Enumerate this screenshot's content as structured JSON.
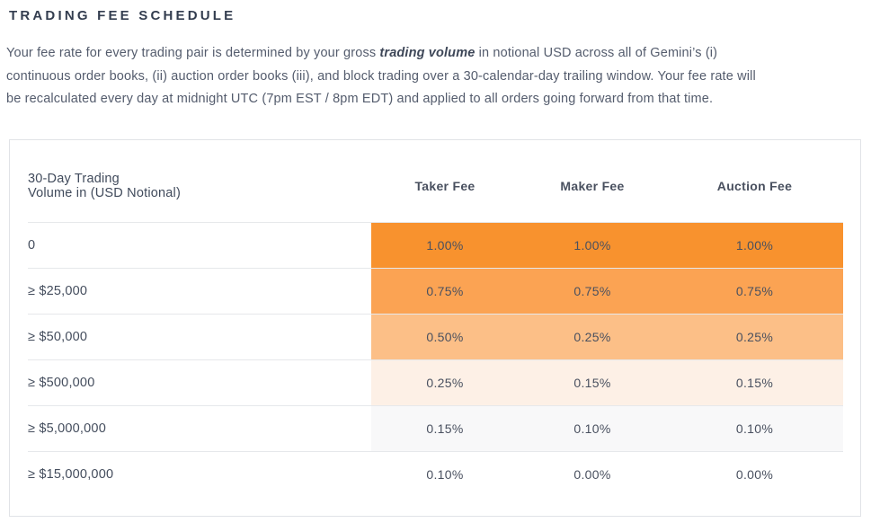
{
  "page": {
    "title": "TRADING FEE SCHEDULE",
    "intro": {
      "line1_before": "Your fee rate for every trading pair is determined by your gross ",
      "line1_emphasis": "trading volume",
      "line1_after": " in notional USD across all of Gemini’s (i)",
      "line2": "continuous order books, (ii) auction order books (iii), and block trading over a 30-calendar-day trailing window. Your fee rate will",
      "line3": "be recalculated every day at midnight UTC (7pm EST / 8pm EDT) and applied to all orders going forward from that time."
    }
  },
  "table": {
    "headers": {
      "volume_line1": "30-Day Trading",
      "volume_line2": "Volume in (USD Notional)",
      "taker": "Taker Fee",
      "maker": "Maker Fee",
      "auction": "Auction Fee"
    },
    "rows": [
      {
        "volume": "0",
        "taker": "1.00%",
        "maker": "1.00%",
        "auction": "1.00%",
        "color": "#F8922E"
      },
      {
        "volume": "≥ $25,000",
        "taker": "0.75%",
        "maker": "0.75%",
        "auction": "0.75%",
        "color": "#FBA353"
      },
      {
        "volume": "≥ $50,000",
        "taker": "0.50%",
        "maker": "0.25%",
        "auction": "0.25%",
        "color": "#FCBF87"
      },
      {
        "volume": "≥ $500,000",
        "taker": "0.25%",
        "maker": "0.15%",
        "auction": "0.15%",
        "color": "#FDF0E6"
      },
      {
        "volume": "≥ $5,000,000",
        "taker": "0.15%",
        "maker": "0.10%",
        "auction": "0.10%",
        "color": "#F8F8F9"
      },
      {
        "volume": "≥ $15,000,000",
        "taker": "0.10%",
        "maker": "0.00%",
        "auction": "0.00%",
        "color": "#FFFFFF"
      }
    ]
  },
  "colors": {
    "title_text": "#333D4F",
    "body_text": "#545C6D",
    "table_border": "#E1E3E7",
    "row_divider": "#E6E8EB",
    "cell_text": "#49505F"
  }
}
